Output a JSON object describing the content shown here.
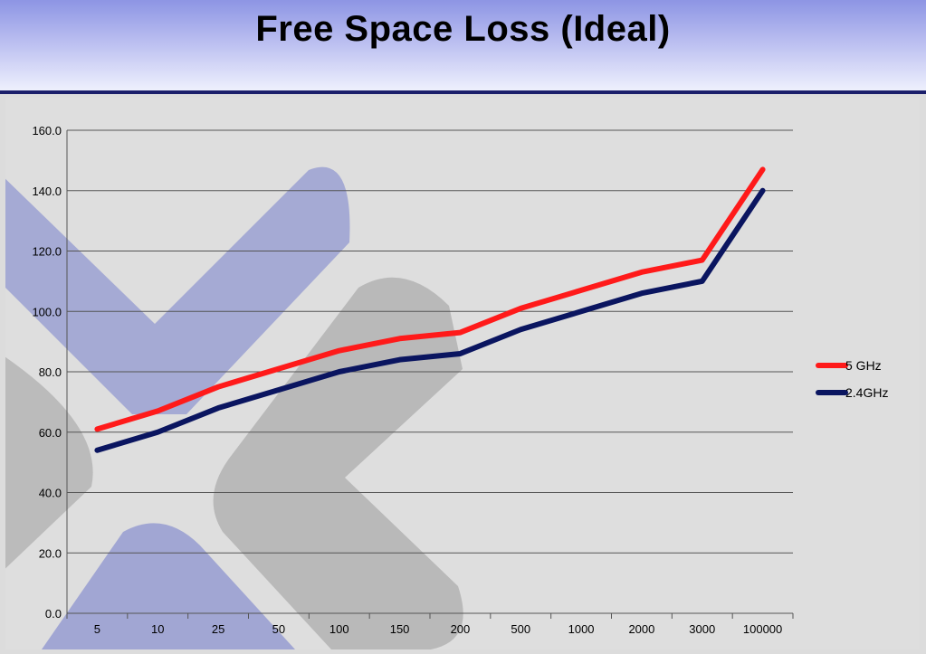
{
  "header": {
    "title": "Free Space Loss (Ideal)"
  },
  "colors": {
    "series_5ghz": "#ff1a1a",
    "series_24ghz": "#0a1560",
    "grid": "#555555",
    "watermark_blue": "#9ea3cf",
    "watermark_gray": "#b8b8b8"
  },
  "chart_data": {
    "type": "line",
    "title": "Free Space Loss (Ideal)",
    "xlabel": "",
    "ylabel": "",
    "categories": [
      "5",
      "10",
      "25",
      "50",
      "100",
      "150",
      "200",
      "500",
      "1000",
      "2000",
      "3000",
      "100000"
    ],
    "y_ticks": [
      "0.0",
      "20.0",
      "40.0",
      "60.0",
      "80.0",
      "100.0",
      "120.0",
      "140.0",
      "160.0"
    ],
    "ylim": [
      0,
      160
    ],
    "grid": "horizontal",
    "legend_position": "right",
    "series": [
      {
        "name": "5 GHz",
        "color": "#ff1a1a",
        "values": [
          61,
          67,
          75,
          81,
          87,
          91,
          93,
          101,
          107,
          113,
          117,
          147
        ]
      },
      {
        "name": "2.4GHz",
        "color": "#0a1560",
        "values": [
          54,
          60,
          68,
          74,
          80,
          84,
          86,
          94,
          100,
          106,
          110,
          140
        ]
      }
    ]
  }
}
